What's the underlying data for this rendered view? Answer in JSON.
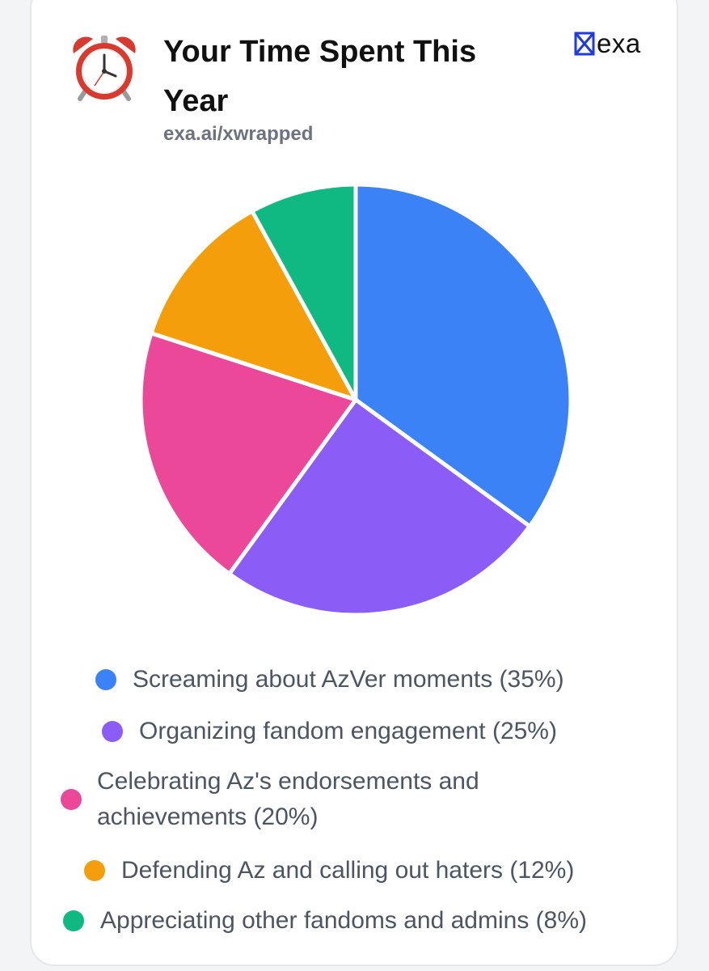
{
  "header": {
    "title": "Your Time Spent This Year",
    "subtitle": "exa.ai/xwrapped",
    "icon": "alarm-clock-icon",
    "brand": "exa"
  },
  "colors": {
    "slices": [
      "#3b82f6",
      "#8b5cf6",
      "#ec4899",
      "#f59e0b",
      "#10b981"
    ]
  },
  "chart_data": {
    "type": "pie",
    "categories": [
      "Screaming about AzVer moments",
      "Organizing fandom engagement",
      "Celebrating Az's endorsements and achievements",
      "Defending Az and calling out haters",
      "Appreciating other fandoms and admins"
    ],
    "values": [
      35,
      25,
      20,
      12,
      8
    ],
    "legend": [
      "Screaming about AzVer moments (35%)",
      "Organizing fandom engagement (25%)",
      "Celebrating Az's endorsements and achievements (20%)",
      "Defending Az and calling out haters (12%)",
      "Appreciating other fandoms and admins (8%)"
    ],
    "legend_position": "bottom"
  }
}
